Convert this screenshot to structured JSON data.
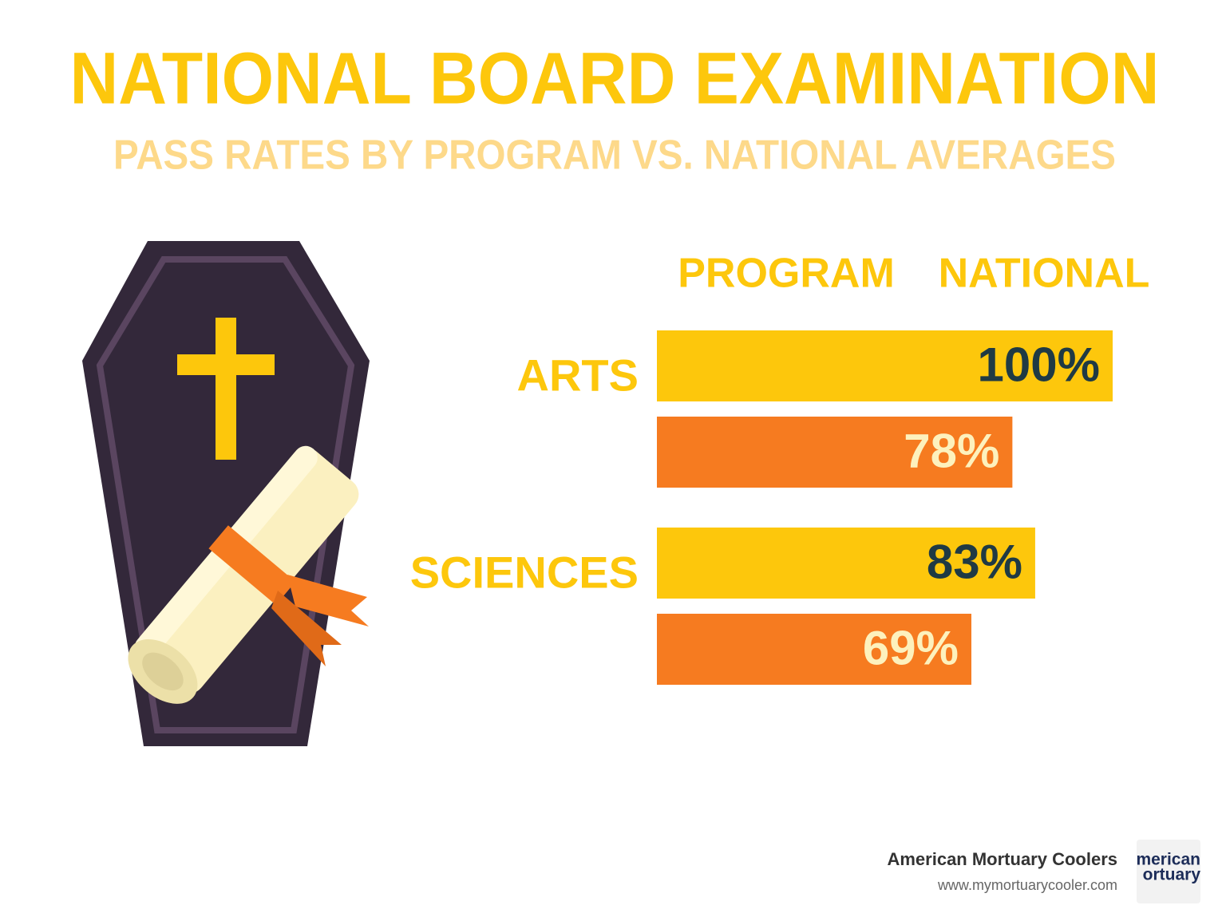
{
  "chart_data": {
    "type": "bar",
    "orientation": "horizontal",
    "title": "NATIONAL BOARD EXAMINATION",
    "subtitle": "PASS RATES BY PROGRAM VS. NATIONAL AVERAGES",
    "categories": [
      "ARTS",
      "SCIENCES"
    ],
    "series": [
      {
        "name": "PROGRAM",
        "color": "#fdc70c",
        "label_color": "#1f3a44",
        "values": [
          100,
          83
        ],
        "value_labels": [
          "100%",
          "83%"
        ]
      },
      {
        "name": "NATIONAL",
        "color": "#f67b20",
        "label_color": "#fdf1bd",
        "values": [
          78,
          69
        ],
        "value_labels": [
          "78%",
          "69%"
        ]
      }
    ],
    "xlim": [
      0,
      100
    ]
  },
  "footer": {
    "company": "American Mortuary Coolers",
    "url": "www.mymortuarycooler.com",
    "logo": [
      "merican",
      "ortuary"
    ]
  }
}
